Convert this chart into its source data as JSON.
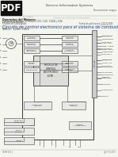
{
  "bg_color": "#f5f5f0",
  "pdf_logo_bg": "#111111",
  "pdf_logo_text": "PDF",
  "header_title": "Service Information Systems",
  "header_right": "Desconectar segun",
  "sub_link": "Jose Duque",
  "sub_link2": "Consulta en el informacion se necesita",
  "doc_section": "Operacion del Motores",
  "doc_line1a": "El siguiente lista para los Motores 3116, 3126, 3126B y 3306",
  "doc_line1b": "Camiones de Bomba",
  "doc_line2a": "Sistema de Combustible",
  "doc_line2b": "Fecha de publicacion: 10/13/2000",
  "doc_line3": "adicional",
  "title": "Circuito de control electronico para el sistema de combustible",
  "subtitle": "SMCS - 1290; 1901",
  "footer_left": "RENR3011",
  "footer_right": "g00796190",
  "line_color": "#555555",
  "box_edge": "#444444",
  "box_face": "#e8e8e4",
  "text_dark": "#222222",
  "text_gray": "#888888",
  "title_color": "#1a4a8a"
}
